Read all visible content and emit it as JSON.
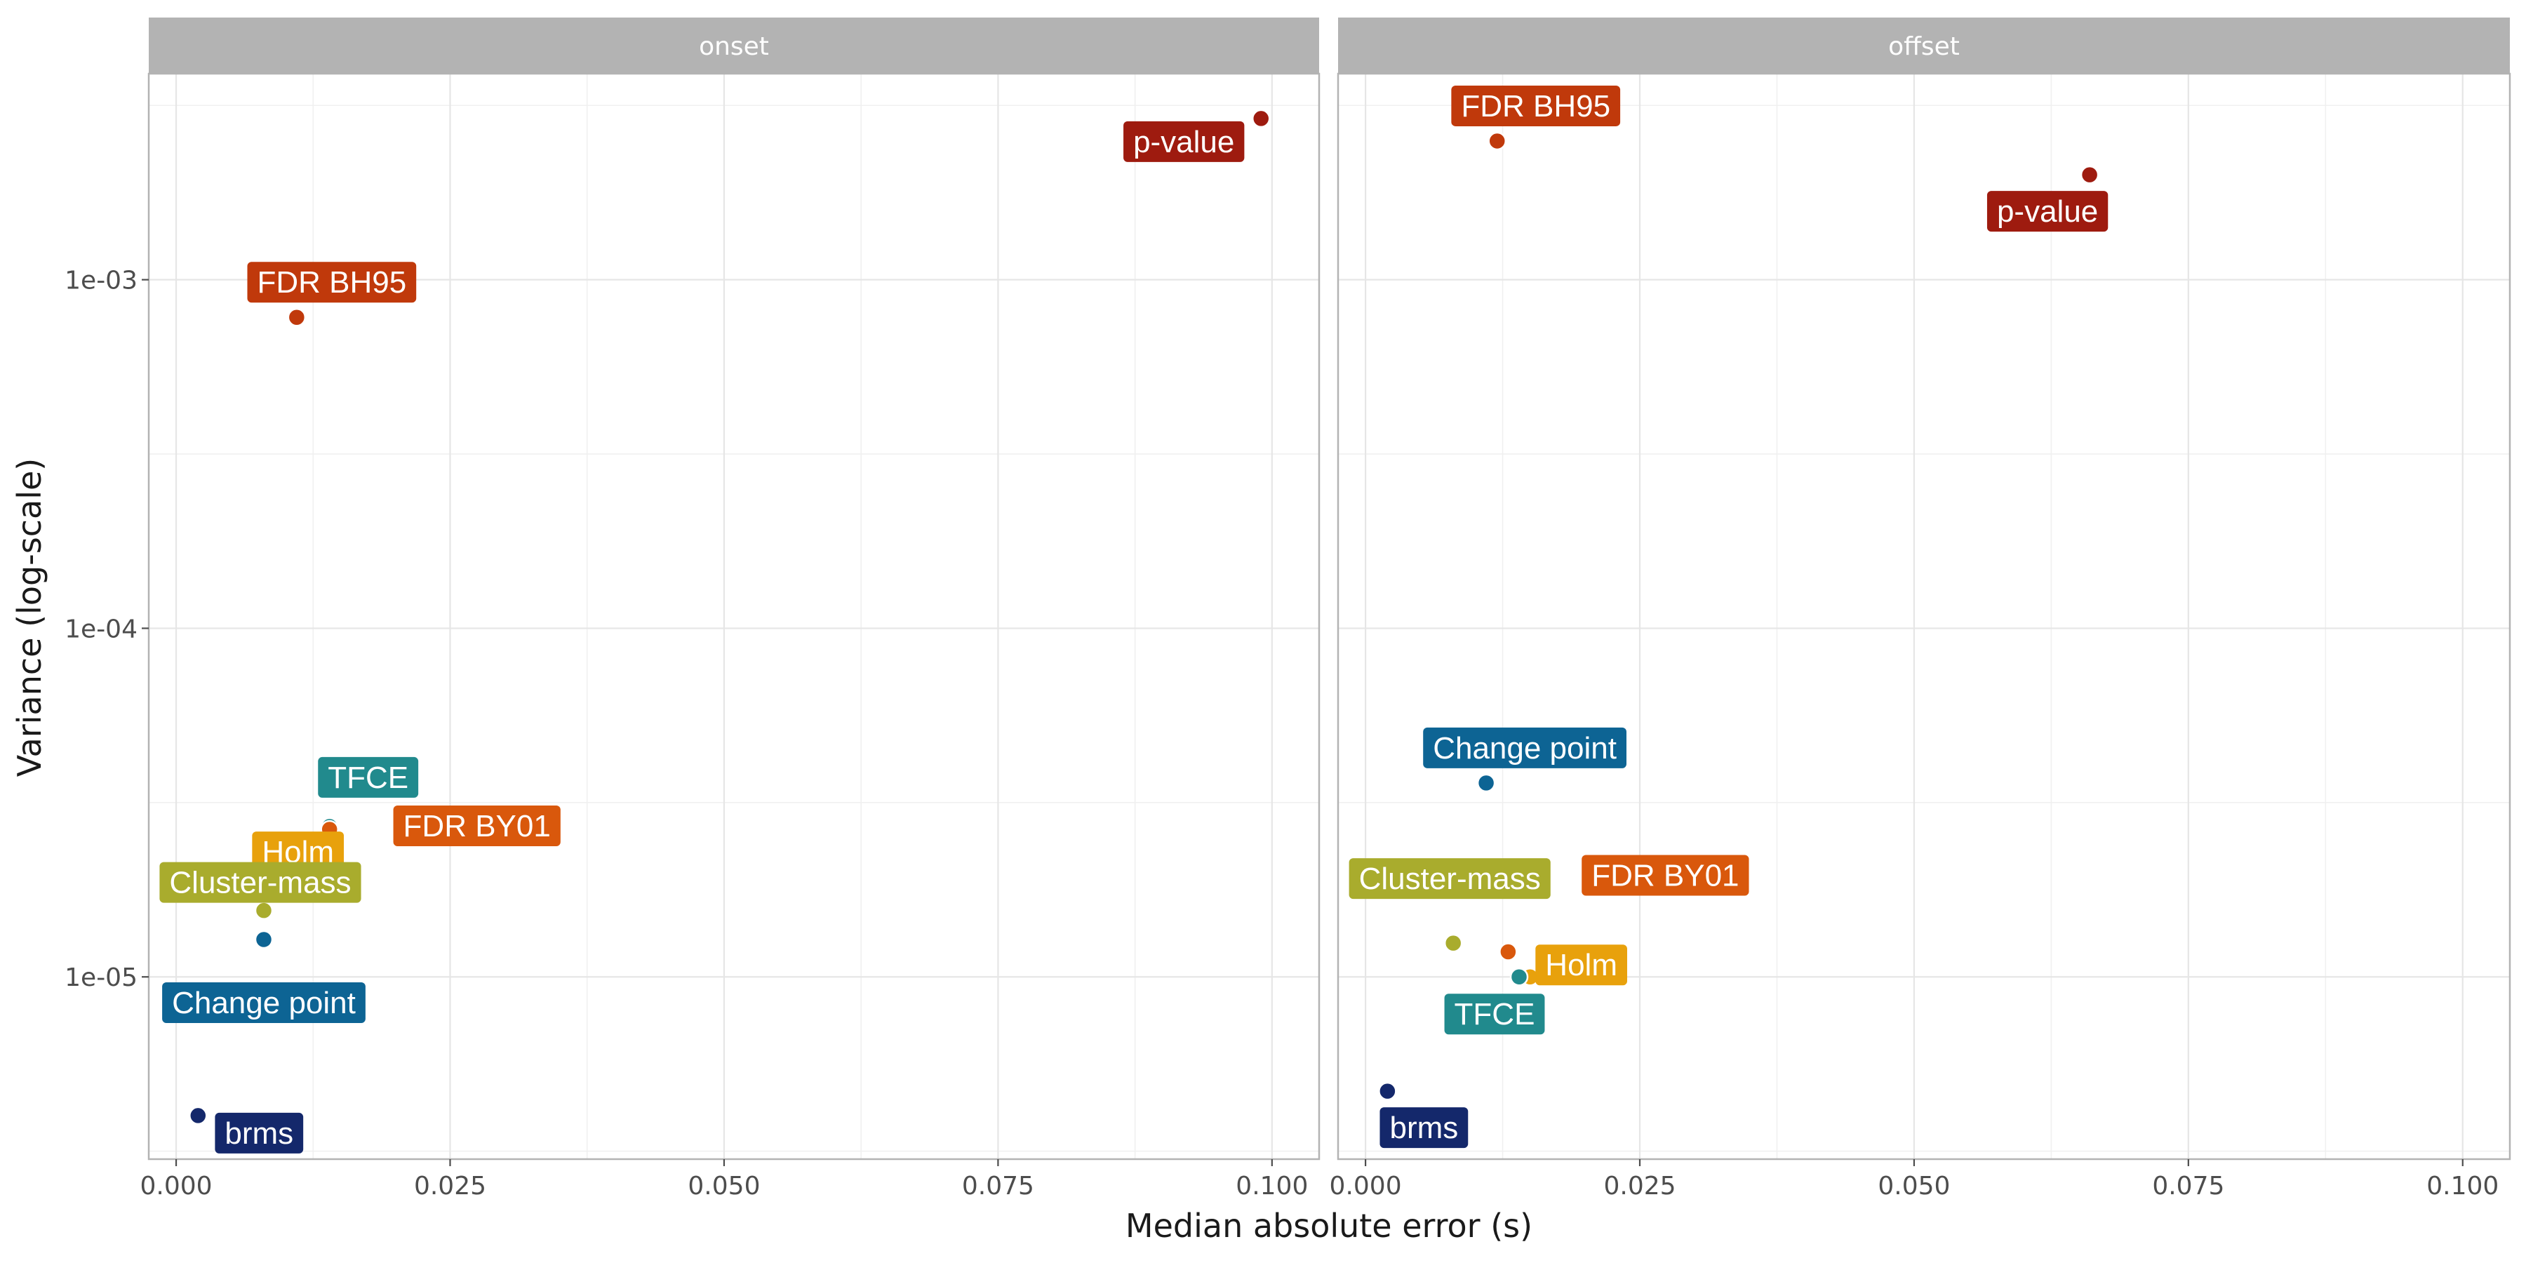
{
  "chart_data": {
    "type": "scatter",
    "xlabel": "Median absolute error (s)",
    "ylabel": "Variance (log-scale)",
    "x_ticks": [
      "0.000",
      "0.025",
      "0.050",
      "0.075",
      "0.100"
    ],
    "y_ticks": [
      "1e-05",
      "1e-04",
      "1e-03"
    ],
    "xlim": [
      -0.0025,
      0.1043
    ],
    "ylim": [
      3e-06,
      0.0039
    ],
    "y_scale": "log",
    "grid": true,
    "legend": "none",
    "panels": [
      {
        "facet": "onset",
        "points": [
          {
            "method": "p-value",
            "x": 0.099,
            "y": 0.0029,
            "color": "#9e1b0f"
          },
          {
            "method": "FDR BH95",
            "x": 0.011,
            "y": 0.00078,
            "color": "#c0390b"
          },
          {
            "method": "TFCE",
            "x": 0.014,
            "y": 2.7e-05,
            "color": "#218a8d"
          },
          {
            "method": "Holm",
            "x": 0.014,
            "y": 2.6e-05,
            "color": "#e8a10c"
          },
          {
            "method": "Cluster-mass",
            "x": 0.008,
            "y": 1.55e-05,
            "color": "#a9ac2d"
          },
          {
            "method": "FDR BY01",
            "x": 0.014,
            "y": 2.65e-05,
            "color": "#d9580c"
          },
          {
            "method": "Change point",
            "x": 0.008,
            "y": 1.28e-05,
            "color": "#0d6494"
          },
          {
            "method": "brms",
            "x": 0.002,
            "y": 4e-06,
            "color": "#14286b"
          }
        ]
      },
      {
        "facet": "offset",
        "points": [
          {
            "method": "FDR BH95",
            "x": 0.012,
            "y": 0.0025,
            "color": "#c0390b"
          },
          {
            "method": "p-value",
            "x": 0.066,
            "y": 0.002,
            "color": "#9e1b0f"
          },
          {
            "method": "Change point",
            "x": 0.011,
            "y": 3.6e-05,
            "color": "#0d6494"
          },
          {
            "method": "Cluster-mass",
            "x": 0.008,
            "y": 1.25e-05,
            "color": "#a9ac2d"
          },
          {
            "method": "FDR BY01",
            "x": 0.013,
            "y": 1.18e-05,
            "color": "#d9580c"
          },
          {
            "method": "Holm",
            "x": 0.015,
            "y": 1e-05,
            "color": "#e8a10c"
          },
          {
            "method": "TFCE",
            "x": 0.014,
            "y": 1e-05,
            "color": "#218a8d"
          },
          {
            "method": "brms",
            "x": 0.002,
            "y": 4.7e-06,
            "color": "#14286b"
          }
        ]
      }
    ]
  }
}
